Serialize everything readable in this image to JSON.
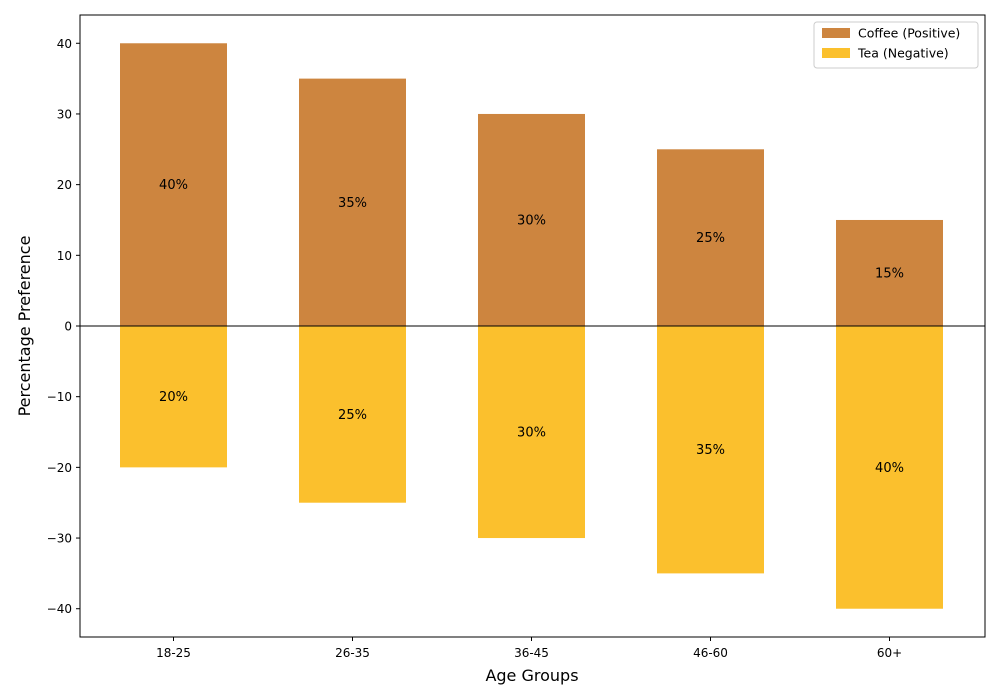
{
  "chart_data": {
    "type": "bar",
    "title": "",
    "xlabel": "Age Groups",
    "ylabel": "Percentage Preference",
    "categories": [
      "18-25",
      "26-35",
      "36-45",
      "46-60",
      "60+"
    ],
    "series": [
      {
        "name": "Coffee (Positive)",
        "values": [
          40,
          35,
          30,
          25,
          15
        ],
        "color": "#cd853f"
      },
      {
        "name": "Tea (Negative)",
        "values": [
          -20,
          -25,
          -30,
          -35,
          -40
        ],
        "color": "#fbc02d"
      }
    ],
    "data_labels": [
      [
        "40%",
        "35%",
        "30%",
        "25%",
        "15%"
      ],
      [
        "20%",
        "25%",
        "30%",
        "35%",
        "40%"
      ]
    ],
    "ylim": [
      -44,
      44
    ],
    "yticks": [
      40,
      30,
      20,
      10,
      0,
      -10,
      -20,
      -30,
      -40
    ],
    "ytick_labels": [
      "40",
      "30",
      "20",
      "10",
      "0",
      "−10",
      "−20",
      "−30",
      "−40"
    ],
    "grid": false,
    "legend_position": "top-right",
    "zero_line": true
  }
}
